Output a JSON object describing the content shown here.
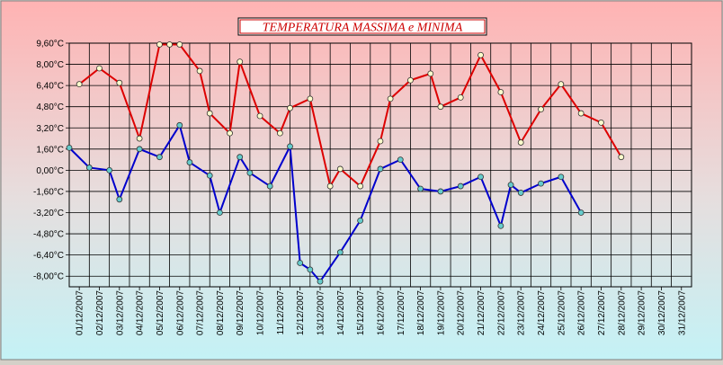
{
  "chart_data": {
    "type": "line",
    "title": "TEMPERATURA MASSIMA e MINIMA",
    "y_unit": "°C",
    "ylim": [
      -8.8,
      9.6
    ],
    "y_ticks": [
      "9,60°C",
      "8,00°C",
      "6,40°C",
      "4,80°C",
      "3,20°C",
      "1,60°C",
      "0,00°C",
      "-1,60°C",
      "-3,20°C",
      "-4,80°C",
      "-6,40°C",
      "-8,00°C"
    ],
    "y_tick_values": [
      9.6,
      8.0,
      6.4,
      4.8,
      3.2,
      1.6,
      0.0,
      -1.6,
      -3.2,
      -4.8,
      -6.4,
      -8.0
    ],
    "grid": true,
    "legend": "none",
    "x_labels": [
      "01/12/2007",
      "02/12/2007",
      "03/12/2007",
      "04/12/2007",
      "05/12/2007",
      "06/12/2007",
      "07/12/2007",
      "08/12/2007",
      "09/12/2007",
      "10/12/2007",
      "11/12/2007",
      "12/12/2007",
      "13/12/2007",
      "14/12/2007",
      "15/12/2007",
      "16/12/2007",
      "17/12/2007",
      "18/12/2007",
      "19/12/2007",
      "20/12/2007",
      "21/12/2007",
      "22/12/2007",
      "23/12/2007",
      "24/12/2007",
      "25/12/2007",
      "26/12/2007",
      "27/12/2007",
      "28/12/2007",
      "29/12/2007",
      "30/12/2007",
      "31/12/2007"
    ],
    "series": [
      {
        "color": "#dd0000",
        "marker_fill": "#ffffcc",
        "points": [
          [
            0.5,
            6.5
          ],
          [
            1.5,
            7.7
          ],
          [
            2.5,
            6.6
          ],
          [
            3.5,
            2.4
          ],
          [
            4.5,
            9.5
          ],
          [
            5.0,
            9.5
          ],
          [
            5.5,
            9.5
          ],
          [
            6.5,
            7.5
          ],
          [
            7.0,
            4.3
          ],
          [
            8.0,
            2.8
          ],
          [
            8.5,
            8.2
          ],
          [
            9.5,
            4.1
          ],
          [
            10.5,
            2.8
          ],
          [
            11.0,
            4.7
          ],
          [
            12.0,
            5.4
          ],
          [
            13.0,
            -1.2
          ],
          [
            13.5,
            0.1
          ],
          [
            14.5,
            -1.2
          ],
          [
            15.5,
            2.2
          ],
          [
            16.0,
            5.4
          ],
          [
            17.0,
            6.8
          ],
          [
            18.0,
            7.3
          ],
          [
            18.5,
            4.8
          ],
          [
            19.5,
            5.5
          ],
          [
            20.5,
            8.7
          ],
          [
            21.5,
            5.9
          ],
          [
            22.5,
            2.1
          ],
          [
            23.5,
            4.6
          ],
          [
            24.5,
            6.5
          ],
          [
            25.5,
            4.3
          ],
          [
            26.5,
            3.6
          ],
          [
            27.5,
            1.0
          ]
        ]
      },
      {
        "color": "#0000cc",
        "marker_fill": "#66cccc",
        "points": [
          [
            0.0,
            1.7
          ],
          [
            1.0,
            0.2
          ],
          [
            2.0,
            0.0
          ],
          [
            2.5,
            -2.2
          ],
          [
            3.5,
            1.6
          ],
          [
            4.5,
            1.0
          ],
          [
            5.5,
            3.4
          ],
          [
            6.0,
            0.6
          ],
          [
            7.0,
            -0.4
          ],
          [
            7.5,
            -3.2
          ],
          [
            8.5,
            1.0
          ],
          [
            9.0,
            -0.2
          ],
          [
            10.0,
            -1.2
          ],
          [
            11.0,
            1.8
          ],
          [
            11.5,
            -7.0
          ],
          [
            12.0,
            -7.5
          ],
          [
            12.5,
            -8.4
          ],
          [
            13.5,
            -6.2
          ],
          [
            14.5,
            -3.8
          ],
          [
            15.5,
            0.1
          ],
          [
            16.5,
            0.8
          ],
          [
            17.5,
            -1.4
          ],
          [
            18.5,
            -1.6
          ],
          [
            19.5,
            -1.2
          ],
          [
            20.5,
            -0.5
          ],
          [
            21.5,
            -4.2
          ],
          [
            22.0,
            -1.1
          ],
          [
            22.5,
            -1.7
          ],
          [
            23.5,
            -1.0
          ],
          [
            24.5,
            -0.5
          ],
          [
            25.5,
            -3.2
          ]
        ]
      }
    ]
  }
}
